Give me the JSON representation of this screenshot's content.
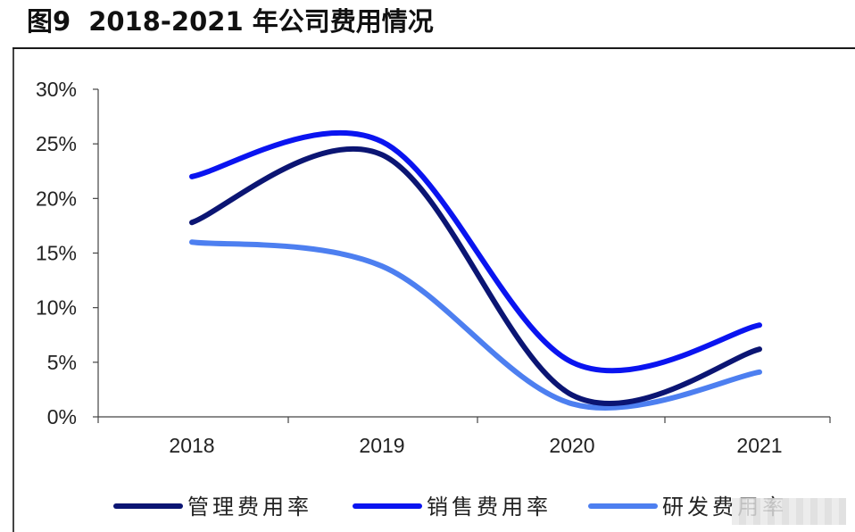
{
  "title": {
    "figure_no": "图9",
    "text": "2018-2021 年公司费用情况"
  },
  "chart_data": {
    "type": "line",
    "smooth": true,
    "categories": [
      "2018",
      "2019",
      "2020",
      "2021"
    ],
    "y_ticks": [
      "0%",
      "5%",
      "10%",
      "15%",
      "20%",
      "25%",
      "30%"
    ],
    "ylim": [
      0,
      30
    ],
    "y_unit": "%",
    "grid": false,
    "legend_position": "bottom",
    "series": [
      {
        "name": "管理费用率",
        "color": "#0b1573",
        "values": [
          17.8,
          24.0,
          2.0,
          6.2
        ]
      },
      {
        "name": "销售费用率",
        "color": "#0a14f0",
        "values": [
          22.0,
          25.2,
          5.0,
          8.4
        ]
      },
      {
        "name": "研发费用率",
        "color": "#4d7ff0",
        "values": [
          16.0,
          13.8,
          1.2,
          4.1
        ]
      }
    ]
  }
}
